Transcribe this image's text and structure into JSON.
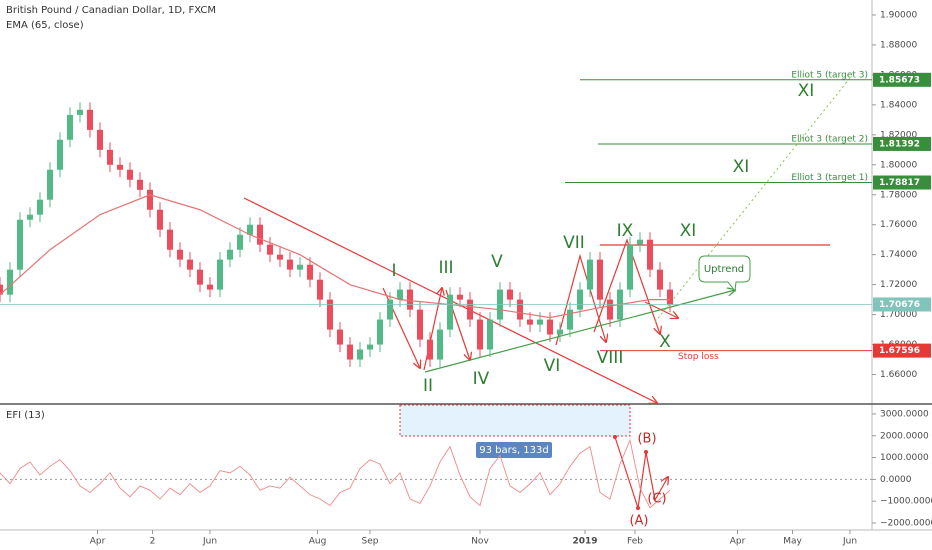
{
  "chart_data": [
    {
      "type": "candlestick",
      "title": "British Pound / Canadian Dollar, 1D, FXCM",
      "x": [
        0,
        4,
        8,
        12,
        16,
        20,
        24,
        28,
        32,
        36,
        40,
        44,
        48,
        52,
        56,
        60,
        64,
        68,
        72,
        76,
        80,
        84,
        88,
        92,
        96,
        100,
        104,
        108,
        112,
        116,
        120,
        124,
        128,
        132,
        136,
        140,
        144,
        148,
        152,
        156,
        160,
        164,
        168,
        172,
        176,
        180,
        184,
        188,
        192,
        196,
        200,
        204,
        208,
        212,
        216,
        220,
        224,
        228,
        232,
        236,
        240,
        244,
        248,
        252,
        256,
        260,
        264,
        268
      ],
      "open": [
        1.72,
        1.7133,
        1.73,
        1.7633,
        1.7667,
        1.7767,
        1.7967,
        1.8167,
        1.8333,
        1.8367,
        1.8233,
        1.81,
        1.8,
        1.7967,
        1.79,
        1.7833,
        1.77,
        1.7567,
        1.7433,
        1.7367,
        1.73,
        1.72,
        1.7167,
        1.7367,
        1.7433,
        1.7533,
        1.76,
        1.7467,
        1.74,
        1.7367,
        1.73,
        1.7333,
        1.7233,
        1.71,
        1.69,
        1.68,
        1.67,
        1.6767,
        1.68,
        1.6967,
        1.71,
        1.7167,
        1.7033,
        1.6833,
        1.67,
        1.69,
        1.7133,
        1.71,
        1.6967,
        1.6767,
        1.6967,
        1.7167,
        1.71,
        1.6967,
        1.6933,
        1.6967,
        1.6867,
        1.69,
        1.7033,
        1.7167,
        1.7367,
        1.71,
        1.6967,
        1.7167,
        1.7467,
        1.75,
        1.73,
        1.7167
      ],
      "high": [
        1.725,
        1.735,
        1.7683,
        1.7717,
        1.7817,
        1.8017,
        1.8217,
        1.8383,
        1.8417,
        1.8417,
        1.8283,
        1.815,
        1.805,
        1.8017,
        1.795,
        1.7883,
        1.775,
        1.7617,
        1.7483,
        1.7417,
        1.735,
        1.725,
        1.7417,
        1.7483,
        1.7583,
        1.765,
        1.765,
        1.7517,
        1.745,
        1.7417,
        1.7383,
        1.7383,
        1.7283,
        1.715,
        1.695,
        1.685,
        1.6817,
        1.685,
        1.7017,
        1.715,
        1.7217,
        1.7217,
        1.7083,
        1.6883,
        1.695,
        1.7183,
        1.7183,
        1.715,
        1.7017,
        1.7017,
        1.7217,
        1.7217,
        1.715,
        1.7017,
        1.7017,
        1.7017,
        1.695,
        1.7083,
        1.7217,
        1.7417,
        1.7417,
        1.715,
        1.7217,
        1.7517,
        1.755,
        1.755,
        1.735,
        1.7217
      ],
      "low": [
        1.7083,
        1.7083,
        1.725,
        1.7583,
        1.7617,
        1.7717,
        1.7917,
        1.8117,
        1.8283,
        1.8183,
        1.805,
        1.795,
        1.7917,
        1.785,
        1.7783,
        1.765,
        1.7517,
        1.7383,
        1.7317,
        1.725,
        1.715,
        1.7117,
        1.7117,
        1.7317,
        1.7383,
        1.7483,
        1.7417,
        1.735,
        1.7317,
        1.725,
        1.725,
        1.7183,
        1.705,
        1.685,
        1.675,
        1.665,
        1.665,
        1.6717,
        1.675,
        1.6917,
        1.705,
        1.6983,
        1.6783,
        1.665,
        1.665,
        1.685,
        1.705,
        1.6917,
        1.6717,
        1.6717,
        1.6917,
        1.705,
        1.6917,
        1.6883,
        1.6883,
        1.6817,
        1.6817,
        1.685,
        1.6983,
        1.7117,
        1.705,
        1.6917,
        1.6917,
        1.7117,
        1.7417,
        1.725,
        1.7117,
        1.7017
      ],
      "close": [
        1.7133,
        1.73,
        1.7633,
        1.7667,
        1.7767,
        1.7967,
        1.8167,
        1.8333,
        1.8367,
        1.8233,
        1.81,
        1.8,
        1.7967,
        1.79,
        1.7833,
        1.77,
        1.7567,
        1.7433,
        1.7367,
        1.73,
        1.72,
        1.7167,
        1.7367,
        1.7433,
        1.7533,
        1.76,
        1.7467,
        1.74,
        1.7367,
        1.73,
        1.7333,
        1.7233,
        1.71,
        1.69,
        1.68,
        1.67,
        1.6767,
        1.68,
        1.6967,
        1.71,
        1.7167,
        1.7033,
        1.6833,
        1.67,
        1.69,
        1.7133,
        1.71,
        1.6967,
        1.6767,
        1.6967,
        1.7167,
        1.71,
        1.6967,
        1.6933,
        1.6967,
        1.6867,
        1.69,
        1.7033,
        1.7167,
        1.7367,
        1.71,
        1.6967,
        1.7167,
        1.7467,
        1.75,
        1.73,
        1.7167,
        1.7067
      ],
      "up_color": "#53b987",
      "down_color": "#eb4d5c",
      "xlim": [
        0,
        348.8
      ],
      "ylim": [
        1.641,
        1.91
      ],
      "yticks": [
        {
          "value": 1.66,
          "label": "1.66000"
        },
        {
          "value": 1.68,
          "label": "1.68000"
        },
        {
          "value": 1.7,
          "label": "1.70000"
        },
        {
          "value": 1.72,
          "label": "1.72000"
        },
        {
          "value": 1.74,
          "label": "1.74000"
        },
        {
          "value": 1.76,
          "label": "1.76000"
        },
        {
          "value": 1.78,
          "label": "1.78000"
        },
        {
          "value": 1.8,
          "label": "1.80000"
        },
        {
          "value": 1.82,
          "label": "1.82000"
        },
        {
          "value": 1.84,
          "label": "1.84000"
        },
        {
          "value": 1.86,
          "label": "1.86000"
        },
        {
          "value": 1.88,
          "label": "1.88000"
        },
        {
          "value": 1.9,
          "label": "1.90000"
        }
      ],
      "grid": false,
      "series": [
        {
          "name": "EMA (65, close)",
          "color": "#e57373",
          "x": [
            0,
            20,
            40,
            60,
            80,
            100,
            120,
            140,
            160,
            180,
            200,
            220,
            240,
            260,
            268
          ],
          "values": [
            1.7133,
            1.7433,
            1.7667,
            1.78,
            1.77,
            1.7533,
            1.74,
            1.72,
            1.71,
            1.7067,
            1.7033,
            1.698,
            1.7047,
            1.71,
            1.71
          ]
        }
      ],
      "price_levels": [
        {
          "value": 1.85673,
          "text": "Elliot 5 (target 3)",
          "color": "#388e3c"
        },
        {
          "value": 1.81392,
          "text": "Elliot 3 (target 2)",
          "color": "#388e3c"
        },
        {
          "value": 1.78817,
          "text": "Elliot 3 (target 1)",
          "color": "#388e3c"
        },
        {
          "value": 1.70676,
          "color": "#80c4bc"
        },
        {
          "value": 1.67596,
          "text": "Stop loss",
          "color": "#e53935"
        }
      ],
      "wave_labels": [
        "I",
        "II",
        "III",
        "IV",
        "V",
        "VI",
        "VII",
        "VIII",
        "IX",
        "X",
        "XI",
        "XI",
        "XI"
      ],
      "callout": "Uptrend"
    },
    {
      "type": "line",
      "title": "EFI (13)",
      "color": "#ef8a8a",
      "x": [
        0,
        4,
        8,
        12,
        16,
        20,
        24,
        28,
        32,
        36,
        40,
        44,
        48,
        52,
        56,
        60,
        64,
        68,
        72,
        76,
        80,
        84,
        88,
        92,
        96,
        100,
        104,
        108,
        112,
        116,
        120,
        124,
        128,
        132,
        136,
        140,
        144,
        148,
        152,
        156,
        160,
        164,
        168,
        172,
        176,
        180,
        184,
        188,
        192,
        196,
        200,
        204,
        208,
        212,
        216,
        220,
        224,
        228,
        232,
        236,
        240,
        244,
        248,
        252,
        256,
        260,
        264,
        268
      ],
      "values": [
        300,
        -200,
        500,
        800,
        200,
        600,
        900,
        400,
        -300,
        -600,
        -200,
        300,
        -400,
        -800,
        -300,
        -500,
        -900,
        -400,
        -700,
        -200,
        -600,
        -300,
        400,
        300,
        600,
        200,
        -500,
        -300,
        -400,
        100,
        -300,
        -700,
        -900,
        -1200,
        -600,
        -400,
        500,
        900,
        700,
        -200,
        300,
        -900,
        -1100,
        -300,
        800,
        1500,
        200,
        -800,
        -1200,
        500,
        1100,
        -300,
        -600,
        -200,
        300,
        -700,
        -200,
        600,
        1200,
        1500,
        -600,
        -900,
        700,
        1800,
        -400,
        -1300,
        -900,
        -500
      ],
      "xlim": [
        0,
        348.8
      ],
      "xticks": [
        {
          "value": 39,
          "label": "Apr"
        },
        {
          "value": 61,
          "label": "2"
        },
        {
          "value": 84,
          "label": "Jun"
        },
        {
          "value": 127,
          "label": "Aug"
        },
        {
          "value": 148,
          "label": "Sep"
        },
        {
          "value": 192,
          "label": "Nov"
        },
        {
          "value": 234,
          "label": "2019"
        },
        {
          "value": 254,
          "label": "Feb"
        },
        {
          "value": 295,
          "label": "Apr"
        },
        {
          "value": 317,
          "label": "May"
        },
        {
          "value": 340,
          "label": "Jun"
        }
      ],
      "ylim": [
        -2320,
        3410
      ],
      "yticks": [
        {
          "value": -2000,
          "label": "−2000.0000"
        },
        {
          "value": -1000,
          "label": "−1000.0000"
        },
        {
          "value": 0,
          "label": "0.0000"
        },
        {
          "value": 1000,
          "label": "1000.0000"
        },
        {
          "value": 2000,
          "label": "2000.0000"
        },
        {
          "value": 3000,
          "label": "3000.0000"
        }
      ],
      "zero_line": true,
      "wave_labels": [
        "(A)",
        "(B)",
        "(C)"
      ],
      "measure": "93 bars, 133d"
    }
  ]
}
